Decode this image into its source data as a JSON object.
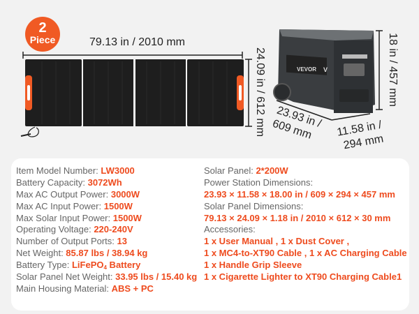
{
  "badge": {
    "number": "2",
    "label": "Piece"
  },
  "panel_dims": {
    "width": "79.13 in / 2010 mm",
    "height": "24.09 in / 612 mm"
  },
  "station": {
    "brand": "VEVOR",
    "logo": "V",
    "height": "18 in / 457 mm",
    "length": [
      "23.93 in /",
      "609 mm"
    ],
    "depth": [
      "11.58 in /",
      "294 mm"
    ]
  },
  "specs_left": [
    {
      "label": "Item Model Number: ",
      "value": "LW3000"
    },
    {
      "label": "Battery Capacity: ",
      "value": "3072Wh"
    },
    {
      "label": "Max AC Output Power: ",
      "value": "3000W"
    },
    {
      "label": "Max AC Input Power: ",
      "value": "1500W"
    },
    {
      "label": "Max Solar Input Power: ",
      "value": "1500W"
    },
    {
      "label": "Operating Voltage: ",
      "value": "220-240V"
    },
    {
      "label": "Number of Output Ports: ",
      "value": "13"
    },
    {
      "label": "Net Weight: ",
      "value": "85.87 lbs / 38.94 kg"
    },
    {
      "label": "Battery Type: ",
      "value": "LiFePO",
      "value_sub": "4",
      "value_tail": " Battery"
    },
    {
      "label": "Solar Panel Net Weight: ",
      "value": "33.95 lbs / 15.40 kg"
    },
    {
      "label": "Main Housing Material: ",
      "value": "ABS + PC"
    }
  ],
  "specs_right": {
    "solar_panel_label": "Solar Panel: ",
    "solar_panel_value": "2*200W",
    "station_dims_label": "Power Station Dimensions:",
    "station_dims_value": "23.93 × 11.58 × 18.00 in / 609 × 294 × 457 mm",
    "panel_dims_label": "Solar Panel Dimensions:",
    "panel_dims_value": "79.13 × 24.09 × 1.18 in / 2010 × 612 × 30 mm",
    "accessories_label": "Accessories:",
    "accessories": [
      "1 x User Manual , 1 x Dust Cover ,",
      "1 x MC4-to-XT90 Cable , 1 x AC Charging Cable",
      "1 x Handle Grip Sleeve",
      "1 x Cigarette Lighter to XT90 Charging Cable1"
    ]
  },
  "colors": {
    "accent": "#ee4b1e",
    "label": "#666666",
    "panel": "#1e1e1e"
  }
}
